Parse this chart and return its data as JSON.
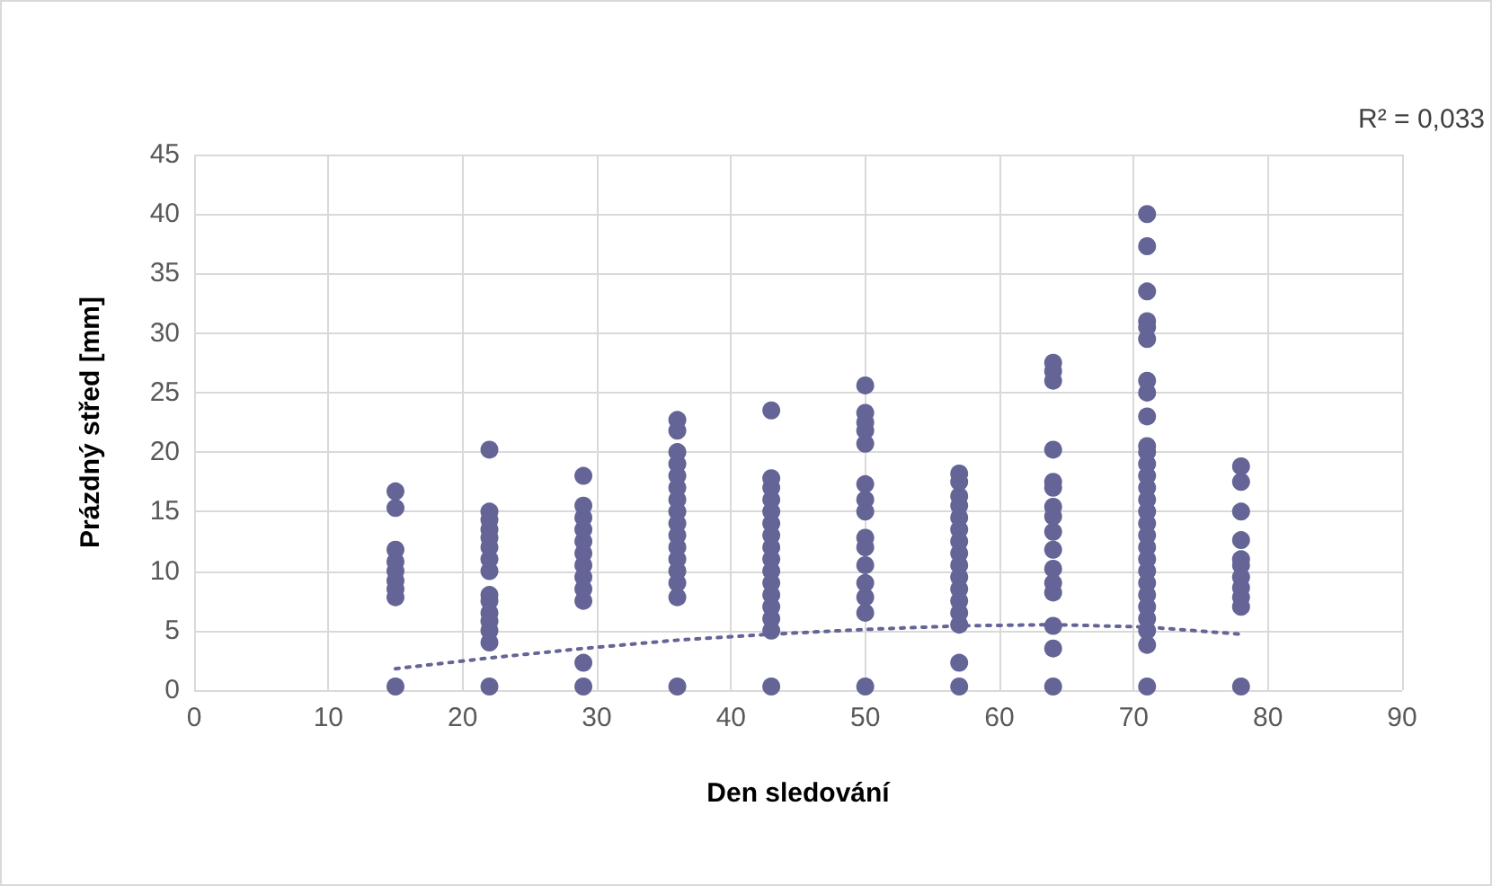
{
  "chart_data": {
    "type": "scatter",
    "xlabel": "Den sledování",
    "ylabel": "Prázdný střed [mm]",
    "xlim": [
      0,
      90
    ],
    "xticks": [
      0,
      10,
      20,
      30,
      40,
      50,
      60,
      70,
      80,
      90
    ],
    "ylim": [
      0,
      45
    ],
    "yticks": [
      0,
      5,
      10,
      15,
      20,
      25,
      30,
      35,
      40,
      45
    ],
    "grid": true,
    "marker": "circle",
    "annotations": [
      "R² = 0,033"
    ],
    "series": [
      {
        "color": "#646496",
        "x": [
          15,
          15,
          15,
          15,
          15,
          15,
          15,
          15,
          15,
          22,
          22,
          22,
          22,
          22,
          22,
          22,
          22,
          22,
          22,
          22,
          22,
          22,
          22,
          22,
          29,
          29,
          29,
          29,
          29,
          29,
          29,
          29,
          29,
          29,
          29,
          29,
          36,
          36,
          36,
          36,
          36,
          36,
          36,
          36,
          36,
          36,
          36,
          36,
          36,
          36,
          36,
          36,
          43,
          43,
          43,
          43,
          43,
          43,
          43,
          43,
          43,
          43,
          43,
          43,
          43,
          43,
          43,
          43,
          50,
          50,
          50,
          50,
          50,
          50,
          50,
          50,
          50,
          50,
          50,
          50,
          50,
          50,
          50,
          57,
          57,
          57,
          57,
          57,
          57,
          57,
          57,
          57,
          57,
          57,
          57,
          57,
          57,
          57,
          57,
          64,
          64,
          64,
          64,
          64,
          64,
          64,
          64,
          64,
          64,
          64,
          64,
          64,
          64,
          64,
          64,
          71,
          71,
          71,
          71,
          71,
          71,
          71,
          71,
          71,
          71,
          71,
          71,
          71,
          71,
          71,
          71,
          71,
          71,
          71,
          71,
          71,
          71,
          71,
          71,
          71,
          71,
          71,
          71,
          78,
          78,
          78,
          78,
          78,
          78,
          78,
          78,
          78,
          78,
          78
        ],
        "values": [
          0.3,
          7.8,
          8.5,
          9.2,
          10,
          10.8,
          11.8,
          15.3,
          16.7,
          0.3,
          4,
          5,
          5.8,
          6.5,
          7.5,
          8,
          10,
          11,
          12,
          12.8,
          13.5,
          14.3,
          15,
          20.2,
          0.3,
          2.3,
          7.5,
          8.5,
          9.5,
          10.5,
          11.5,
          12.5,
          13.5,
          14.5,
          15.5,
          18,
          0.3,
          7.8,
          9,
          10,
          11,
          12,
          13,
          14,
          15,
          16,
          17,
          18,
          19,
          20,
          21.8,
          22.7,
          0.3,
          5,
          6,
          7,
          8,
          9,
          10,
          11,
          12,
          13,
          14,
          15,
          16,
          17,
          17.8,
          23.5,
          0.3,
          6.5,
          7.8,
          9,
          10.5,
          12,
          12.8,
          15,
          16,
          17.3,
          20.7,
          21.8,
          22.5,
          23.3,
          25.6,
          0.3,
          2.3,
          5.5,
          6.5,
          7.5,
          8.5,
          9.5,
          10.5,
          11.5,
          12.5,
          13.5,
          14.5,
          15.5,
          16.3,
          17.5,
          18.2,
          0.3,
          3.5,
          5.4,
          8.2,
          9,
          10.2,
          11.8,
          13.3,
          14.6,
          15.4,
          17,
          17.5,
          20.2,
          26,
          26.8,
          27.5,
          0.3,
          3.8,
          5,
          6,
          7,
          8,
          9,
          10,
          11,
          12,
          13,
          14,
          15,
          16,
          17,
          18,
          19,
          20,
          20.5,
          23,
          25,
          26,
          29.5,
          30.5,
          31,
          33.5,
          37.3,
          40,
          0.3,
          7,
          7.8,
          8.6,
          9.5,
          10.5,
          11,
          12.6,
          15,
          17.5,
          18.8
        ]
      },
      {
        "type": "line",
        "color": "#646496",
        "line_style": "dotted",
        "marker": "none",
        "x": [
          15,
          22,
          29,
          36,
          43,
          50,
          57,
          64,
          71,
          78
        ],
        "values": [
          1.8,
          2.7,
          3.5,
          4.2,
          4.7,
          5.1,
          5.4,
          5.5,
          5.3,
          4.7
        ]
      }
    ]
  }
}
